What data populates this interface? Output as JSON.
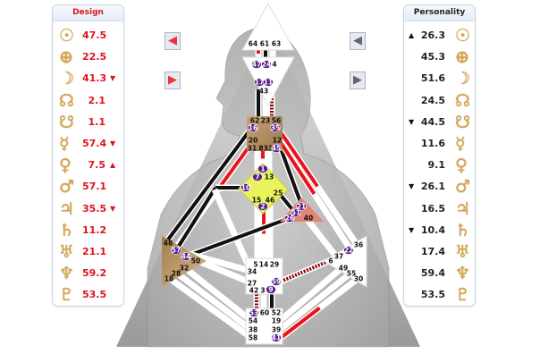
{
  "design": {
    "title": "Design",
    "rows": [
      {
        "planet": "sun",
        "glyph": "☉",
        "value": "47.5",
        "marker": ""
      },
      {
        "planet": "earth",
        "glyph": "⊕",
        "value": "22.5",
        "marker": ""
      },
      {
        "planet": "moon",
        "glyph": "☽",
        "value": "41.3",
        "marker": "▼"
      },
      {
        "planet": "north-node",
        "glyph": "☊",
        "value": "2.1",
        "marker": ""
      },
      {
        "planet": "south-node",
        "glyph": "☋",
        "value": "1.1",
        "marker": ""
      },
      {
        "planet": "mercury",
        "glyph": "☿",
        "value": "57.4",
        "marker": "▼"
      },
      {
        "planet": "venus",
        "glyph": "♀",
        "value": "7.5",
        "marker": "▲"
      },
      {
        "planet": "mars",
        "glyph": "♂",
        "value": "57.1",
        "marker": ""
      },
      {
        "planet": "jupiter",
        "glyph": "♃",
        "value": "35.5",
        "marker": "▼"
      },
      {
        "planet": "saturn",
        "glyph": "♄",
        "value": "11.2",
        "marker": ""
      },
      {
        "planet": "uranus",
        "glyph": "♅",
        "value": "21.1",
        "marker": ""
      },
      {
        "planet": "neptune",
        "glyph": "♆",
        "value": "59.2",
        "marker": ""
      },
      {
        "planet": "pluto",
        "glyph": "♇",
        "value": "53.5",
        "marker": ""
      }
    ]
  },
  "personality": {
    "title": "Personality",
    "rows": [
      {
        "planet": "sun",
        "glyph": "☉",
        "value": "26.3",
        "marker": "▲"
      },
      {
        "planet": "earth",
        "glyph": "⊕",
        "value": "45.3",
        "marker": ""
      },
      {
        "planet": "moon",
        "glyph": "☽",
        "value": "51.6",
        "marker": ""
      },
      {
        "planet": "north-node",
        "glyph": "☊",
        "value": "24.5",
        "marker": ""
      },
      {
        "planet": "south-node",
        "glyph": "☋",
        "value": "44.5",
        "marker": "▼"
      },
      {
        "planet": "mercury",
        "glyph": "☿",
        "value": "11.6",
        "marker": ""
      },
      {
        "planet": "venus",
        "glyph": "♀",
        "value": "9.1",
        "marker": ""
      },
      {
        "planet": "mars",
        "glyph": "♂",
        "value": "26.1",
        "marker": "▼"
      },
      {
        "planet": "jupiter",
        "glyph": "♃",
        "value": "16.5",
        "marker": ""
      },
      {
        "planet": "saturn",
        "glyph": "♄",
        "value": "10.4",
        "marker": "▼"
      },
      {
        "planet": "uranus",
        "glyph": "♅",
        "value": "17.4",
        "marker": ""
      },
      {
        "planet": "neptune",
        "glyph": "♆",
        "value": "59.4",
        "marker": ""
      },
      {
        "planet": "pluto",
        "glyph": "♇",
        "value": "53.5",
        "marker": ""
      }
    ]
  },
  "nav": {
    "design_prev_icon": "red-arrow-left-icon",
    "design_next_icon": "red-arrow-right-icon",
    "personality_prev_icon": "gray-arrow-left-icon",
    "personality_next_icon": "gray-arrow-right-icon"
  },
  "colors": {
    "design": "#e0141c",
    "personality": "#111111",
    "active_gate": "#5a1f8c",
    "throat": "#b0895a",
    "g": "#e6f25a",
    "heart": "#e07a6a",
    "spleen": "#b08a55",
    "glyph": "#d6a650"
  },
  "centers": {
    "head": {
      "gates": [
        {
          "g": "64"
        },
        {
          "g": "61"
        },
        {
          "g": "63"
        }
      ]
    },
    "ajna": {
      "gates": [
        {
          "g": "47",
          "a": true
        },
        {
          "g": "24",
          "a": true
        },
        {
          "g": "4"
        },
        {
          "g": "17",
          "a": true
        },
        {
          "g": "11",
          "a": true
        },
        {
          "g": "43"
        }
      ]
    },
    "throat": {
      "gates": [
        {
          "g": "62"
        },
        {
          "g": "23"
        },
        {
          "g": "56"
        },
        {
          "g": "16",
          "a": true
        },
        {
          "g": "35",
          "a": true
        },
        {
          "g": "20"
        },
        {
          "g": "12"
        },
        {
          "g": "31"
        },
        {
          "g": "8"
        },
        {
          "g": "33"
        },
        {
          "g": "45",
          "a": true
        }
      ]
    },
    "g": {
      "gates": [
        {
          "g": "1",
          "a": true
        },
        {
          "g": "7",
          "a": true
        },
        {
          "g": "13"
        },
        {
          "g": "10",
          "a": true
        },
        {
          "g": "25"
        },
        {
          "g": "15"
        },
        {
          "g": "46"
        },
        {
          "g": "2",
          "a": true
        }
      ]
    },
    "heart": {
      "gates": [
        {
          "g": "21",
          "a": true
        },
        {
          "g": "51",
          "a": true
        },
        {
          "g": "26",
          "a": true
        },
        {
          "g": "40"
        }
      ]
    },
    "spleen": {
      "gates": [
        {
          "g": "48"
        },
        {
          "g": "57",
          "a": true
        },
        {
          "g": "44",
          "a": true
        },
        {
          "g": "50"
        },
        {
          "g": "32"
        },
        {
          "g": "28"
        },
        {
          "g": "18"
        }
      ]
    },
    "sacral": {
      "gates": [
        {
          "g": "5"
        },
        {
          "g": "14"
        },
        {
          "g": "29"
        },
        {
          "g": "34"
        },
        {
          "g": "27"
        },
        {
          "g": "59",
          "a": true
        },
        {
          "g": "42"
        },
        {
          "g": "3"
        },
        {
          "g": "9",
          "a": true
        }
      ]
    },
    "solar_plexus": {
      "gates": [
        {
          "g": "36"
        },
        {
          "g": "22",
          "a": true
        },
        {
          "g": "37"
        },
        {
          "g": "6"
        },
        {
          "g": "49"
        },
        {
          "g": "55"
        },
        {
          "g": "30"
        }
      ]
    },
    "root": {
      "gates": [
        {
          "g": "53",
          "a": true
        },
        {
          "g": "60"
        },
        {
          "g": "52"
        },
        {
          "g": "54"
        },
        {
          "g": "19"
        },
        {
          "g": "38"
        },
        {
          "g": "39"
        },
        {
          "g": "58"
        },
        {
          "g": "41",
          "a": true
        }
      ]
    }
  }
}
